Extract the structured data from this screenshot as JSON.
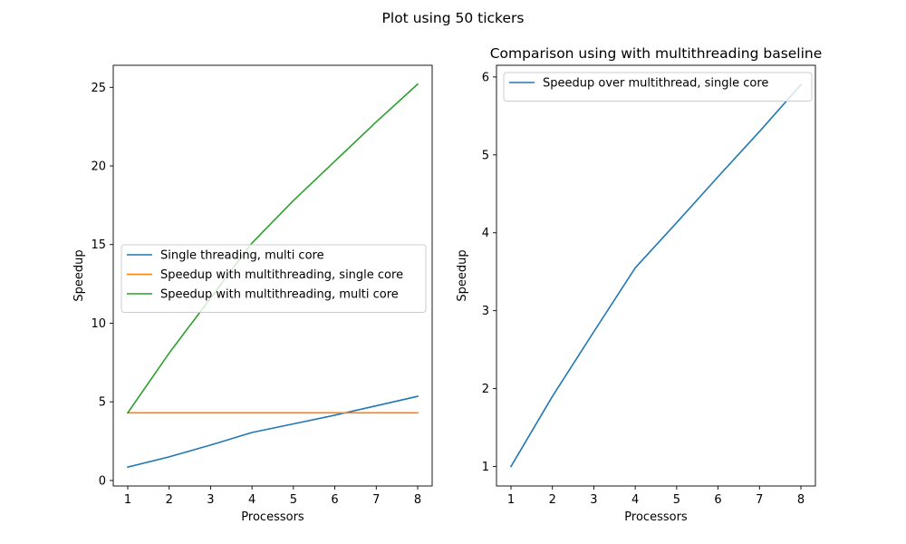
{
  "figure": {
    "suptitle": "Plot using 50 tickers"
  },
  "chart_data": [
    {
      "type": "line",
      "title": "",
      "xlabel": "Processors",
      "ylabel": "Speedup",
      "x": [
        1,
        2,
        3,
        4,
        5,
        6,
        7,
        8
      ],
      "xlim": [
        0.65,
        8.35
      ],
      "ylim": [
        -0.35,
        26.4
      ],
      "xticks": [
        "1",
        "2",
        "3",
        "4",
        "5",
        "6",
        "7",
        "8"
      ],
      "yticks": [
        "0",
        "5",
        "10",
        "15",
        "20",
        "25"
      ],
      "legend": "center-left",
      "grid": false,
      "series": [
        {
          "name": "Single threading, multi core",
          "color": "#1f77b4",
          "values": [
            0.85,
            1.5,
            2.25,
            3.05,
            3.6,
            4.15,
            4.75,
            5.35
          ]
        },
        {
          "name": "Speedup with multithreading, single core",
          "color": "#ff7f0e",
          "values": [
            4.3,
            4.3,
            4.3,
            4.3,
            4.3,
            4.3,
            4.3,
            4.3
          ]
        },
        {
          "name": "Speedup with multithreading, multi core",
          "color": "#2ca02c",
          "values": [
            4.3,
            8.1,
            11.6,
            15.1,
            17.8,
            20.3,
            22.8,
            25.2
          ]
        }
      ]
    },
    {
      "type": "line",
      "title": "Comparison using with multithreading baseline",
      "xlabel": "Processors",
      "ylabel": "Speedup",
      "x": [
        1,
        2,
        3,
        4,
        5,
        6,
        7,
        8
      ],
      "xlim": [
        0.65,
        8.35
      ],
      "ylim": [
        0.75,
        6.15
      ],
      "xticks": [
        "1",
        "2",
        "3",
        "4",
        "5",
        "6",
        "7",
        "8"
      ],
      "yticks": [
        "1",
        "2",
        "3",
        "4",
        "5",
        "6"
      ],
      "legend": "upper-left",
      "grid": false,
      "series": [
        {
          "name": "Speedup over multithread, single core",
          "color": "#1f77b4",
          "values": [
            1.0,
            1.9,
            2.73,
            3.55,
            4.13,
            4.72,
            5.3,
            5.9
          ]
        }
      ]
    }
  ]
}
